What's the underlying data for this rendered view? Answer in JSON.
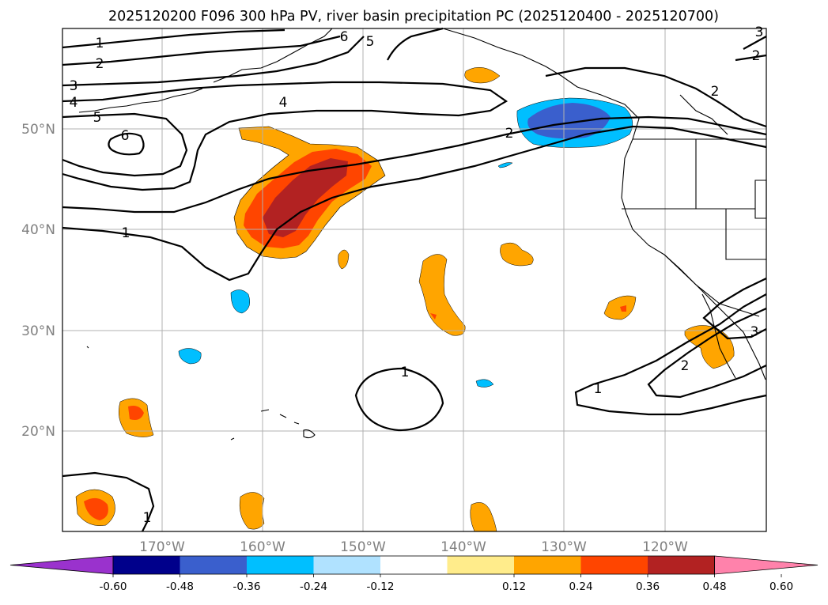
{
  "title": "2025120200 F096 300 hPa PV, river basin precipitation PC (2025120400 - 2025120700)",
  "lon_labels": [
    "170°W",
    "160°W",
    "150°W",
    "140°W",
    "130°W",
    "120°W"
  ],
  "lat_labels": [
    "50°N",
    "40°N",
    "30°N",
    "20°N"
  ],
  "colorbar": {
    "colors": [
      "#9a32cd",
      "#00008b",
      "#3a5fcd",
      "#00bfff",
      "#b0e2ff",
      "#ffffff",
      "#ffec8b",
      "#ffa500",
      "#ff4500",
      "#b22222",
      "#ff82ab"
    ],
    "ticks": [
      "-0.60",
      "-0.48",
      "-0.36",
      "-0.24",
      "-0.12",
      "0.12",
      "0.24",
      "0.36",
      "0.48",
      "0.60"
    ]
  },
  "contour_labels": [
    "1",
    "2",
    "3",
    "4",
    "5",
    "6",
    "4",
    "2",
    "2",
    "1",
    "1",
    "1",
    "2",
    "3",
    "6",
    "5",
    "3",
    "2",
    "1"
  ],
  "colors": {
    "land_outline": "#000000",
    "grid": "#b0b0b0",
    "contour": "#000000"
  }
}
